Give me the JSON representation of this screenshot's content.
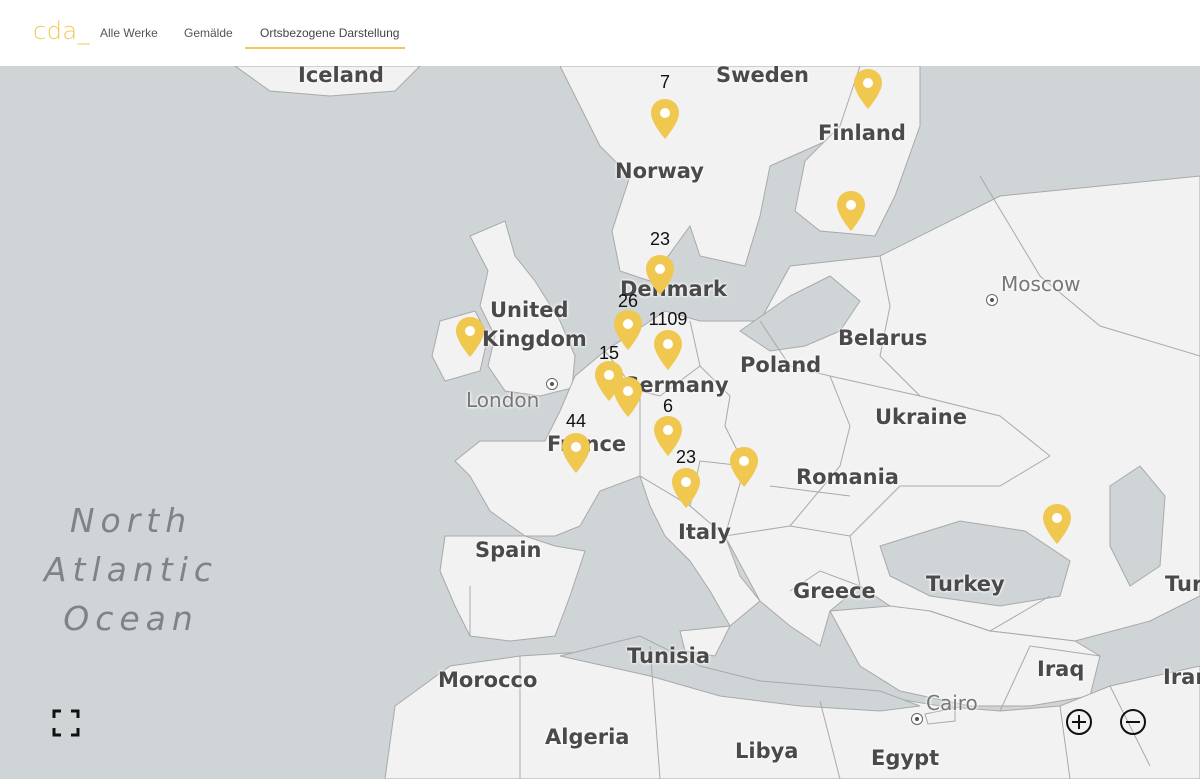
{
  "header": {
    "logo": "cda_",
    "nav": [
      "Alle Werke",
      "Gemälde",
      "Ortsbezogene Darstellung"
    ],
    "active_index": 2,
    "accent": "#f0c84f"
  },
  "map": {
    "ocean_label": [
      "North",
      "Atlantic",
      "Ocean"
    ],
    "countries": [
      "Iceland",
      "Sweden",
      "Finland",
      "Norway",
      "Denmark",
      "United",
      "Kingdom",
      "Belarus",
      "Poland",
      "Germany",
      "Ukraine",
      "France",
      "Romania",
      "Italy",
      "Spain",
      "Greece",
      "Turkey",
      "Tunisia",
      "Morocco",
      "Iraq",
      "Algeria",
      "Libya",
      "Egypt",
      "Tur",
      "Iran"
    ],
    "cities": [
      "Moscow",
      "London",
      "Cairo"
    ],
    "marker_counts": [
      "7",
      "23",
      "26",
      "1109",
      "15",
      "6",
      "44",
      "23"
    ],
    "marker_color": "#f0c84f",
    "controls": {
      "fullscreen": "fullscreen-icon",
      "zoom_in": "zoom-in-icon",
      "zoom_out": "zoom-out-icon"
    }
  }
}
